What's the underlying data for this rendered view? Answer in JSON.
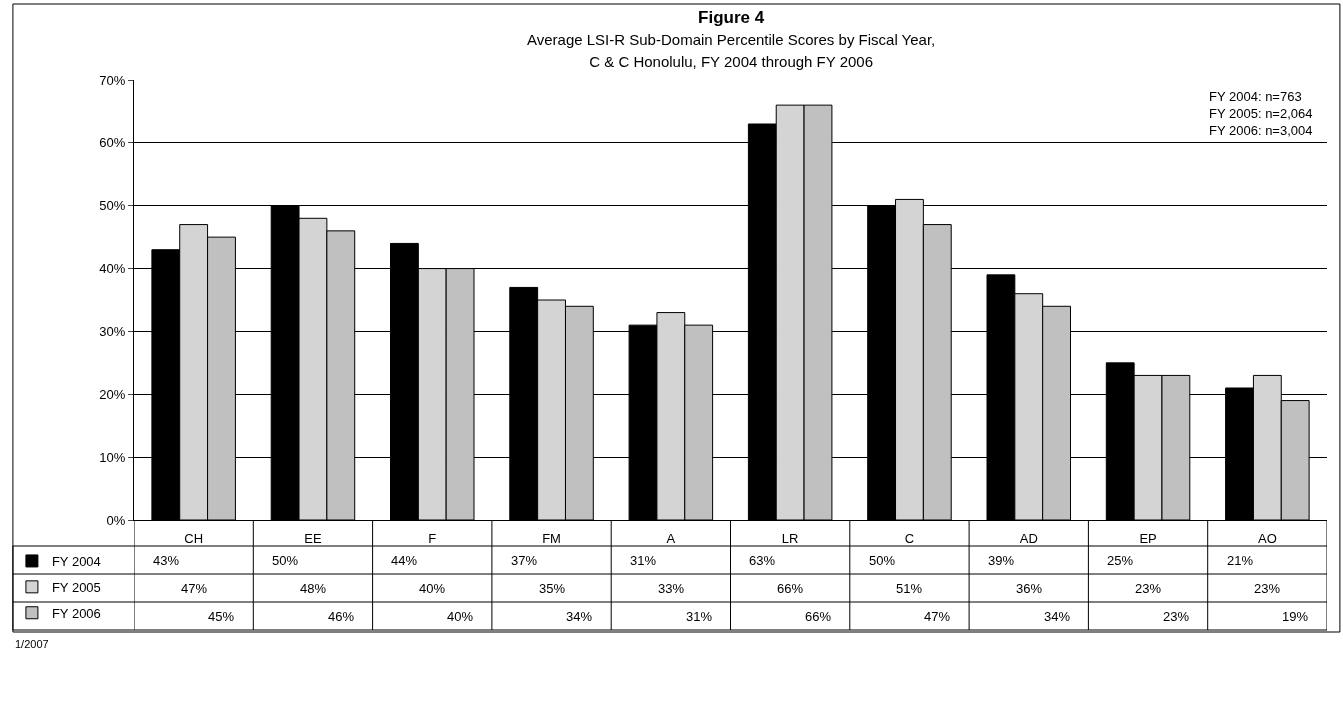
{
  "chart_data": {
    "type": "bar",
    "title": "Figure 4",
    "subtitle": "Average LSI-R Sub-Domain Percentile Scores by Fiscal Year,\nC & C Honolulu, FY 2004 through FY 2006",
    "categories": [
      "CH",
      "EE",
      "F",
      "FM",
      "A",
      "LR",
      "C",
      "AD",
      "EP",
      "AO"
    ],
    "series": [
      {
        "name": "FY 2004",
        "color": "#000000",
        "values": [
          43,
          50,
          44,
          37,
          31,
          63,
          50,
          39,
          25,
          21
        ],
        "value_labels": [
          "43%",
          "50%",
          "44%",
          "37%",
          "31%",
          "63%",
          "50%",
          "39%",
          "25%",
          "21%"
        ]
      },
      {
        "name": "FY 2005",
        "color": "#d4d4d4",
        "values": [
          47,
          48,
          40,
          35,
          33,
          66,
          51,
          36,
          23,
          23
        ],
        "value_labels": [
          "47%",
          "48%",
          "40%",
          "35%",
          "33%",
          "66%",
          "51%",
          "36%",
          "23%",
          "23%"
        ]
      },
      {
        "name": "FY 2006",
        "color": "#c0c0c0",
        "values": [
          45,
          46,
          40,
          34,
          31,
          66,
          47,
          34,
          23,
          19
        ],
        "value_labels": [
          "45%",
          "46%",
          "40%",
          "34%",
          "31%",
          "66%",
          "47%",
          "34%",
          "23%",
          "19%"
        ]
      }
    ],
    "ylim": [
      0,
      70
    ],
    "yticks": [
      {
        "value": 0,
        "label": "0%"
      },
      {
        "value": 10,
        "label": "10%"
      },
      {
        "value": 20,
        "label": "20%"
      },
      {
        "value": 30,
        "label": "30%"
      },
      {
        "value": 40,
        "label": "40%"
      },
      {
        "value": 50,
        "label": "50%"
      },
      {
        "value": 60,
        "label": "60%"
      },
      {
        "value": 70,
        "label": "70%"
      }
    ],
    "grid": "y",
    "legend": "bottom left",
    "annotations": [
      "FY 2004: n=763\nFY 2005: n=2,064\nFY 2006: n=3,004",
      "1/2007"
    ]
  }
}
